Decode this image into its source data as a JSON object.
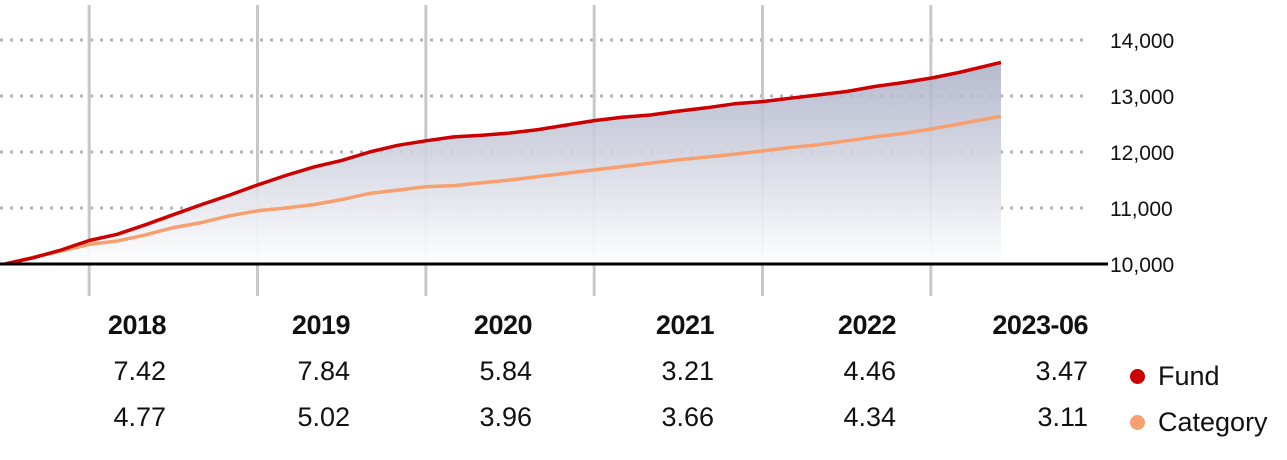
{
  "chart_data": {
    "type": "area",
    "y_axis": {
      "ticks": [
        10000,
        11000,
        12000,
        13000,
        14000
      ],
      "tick_labels": [
        "10,000",
        "11,000",
        "12,000",
        "13,000",
        "14,000"
      ],
      "position": "right"
    },
    "grid": "horizontal dotted, vertical solid",
    "series": [
      {
        "name": "Fund",
        "color": "#cc0000",
        "x": [
          "2017-07",
          "2017-09",
          "2017-11",
          "2018-01",
          "2018-03",
          "2018-05",
          "2018-07",
          "2018-09",
          "2018-11",
          "2019-01",
          "2019-03",
          "2019-05",
          "2019-07",
          "2019-09",
          "2019-11",
          "2020-01",
          "2020-03",
          "2020-05",
          "2020-07",
          "2020-09",
          "2020-11",
          "2021-01",
          "2021-03",
          "2021-05",
          "2021-07",
          "2021-09",
          "2021-11",
          "2022-01",
          "2022-03",
          "2022-05",
          "2022-07",
          "2022-09",
          "2022-11",
          "2023-01",
          "2023-03",
          "2023-06"
        ],
        "y": [
          10000,
          10110,
          10250,
          10420,
          10530,
          10700,
          10880,
          11060,
          11230,
          11410,
          11580,
          11730,
          11850,
          12000,
          12120,
          12200,
          12270,
          12300,
          12340,
          12400,
          12480,
          12560,
          12620,
          12660,
          12730,
          12790,
          12860,
          12900,
          12960,
          13020,
          13080,
          13170,
          13240,
          13320,
          13420,
          13600
        ]
      },
      {
        "name": "Category",
        "color": "#f79f6f",
        "x": [
          "2017-07",
          "2017-09",
          "2017-11",
          "2018-01",
          "2018-03",
          "2018-05",
          "2018-07",
          "2018-09",
          "2018-11",
          "2019-01",
          "2019-03",
          "2019-05",
          "2019-07",
          "2019-09",
          "2019-11",
          "2020-01",
          "2020-03",
          "2020-05",
          "2020-07",
          "2020-09",
          "2020-11",
          "2021-01",
          "2021-03",
          "2021-05",
          "2021-07",
          "2021-09",
          "2021-11",
          "2022-01",
          "2022-03",
          "2022-05",
          "2022-07",
          "2022-09",
          "2022-11",
          "2023-01",
          "2023-03",
          "2023-06"
        ],
        "y": [
          10000,
          10120,
          10230,
          10350,
          10410,
          10520,
          10650,
          10740,
          10860,
          10950,
          11000,
          11060,
          11150,
          11260,
          11320,
          11380,
          11400,
          11450,
          11500,
          11560,
          11620,
          11680,
          11740,
          11800,
          11860,
          11910,
          11960,
          12020,
          12080,
          12130,
          12200,
          12270,
          12330,
          12410,
          12500,
          12640
        ]
      }
    ],
    "x_axis": {
      "x_range": [
        "2017-07",
        "2023-06"
      ],
      "year_lines": [
        "2018",
        "2019",
        "2020",
        "2021",
        "2022",
        "2023"
      ]
    },
    "table": {
      "columns": [
        "2018",
        "2019",
        "2020",
        "2021",
        "2022",
        "2023-06"
      ],
      "rows": [
        {
          "name": "Fund",
          "values": [
            "7.42",
            "7.84",
            "5.84",
            "3.21",
            "4.46",
            "3.47"
          ]
        },
        {
          "name": "Category",
          "values": [
            "4.77",
            "5.02",
            "3.96",
            "3.66",
            "4.34",
            "3.11"
          ]
        }
      ]
    }
  }
}
